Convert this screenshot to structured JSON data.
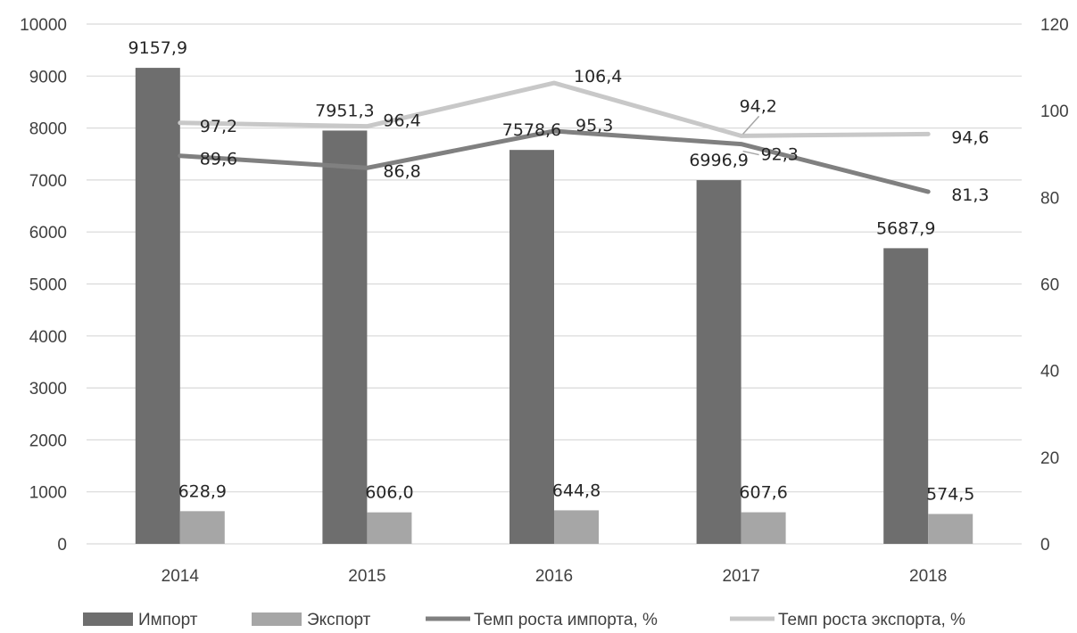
{
  "chart_data": {
    "type": "bar",
    "categories": [
      "2014",
      "2015",
      "2016",
      "2017",
      "2018"
    ],
    "category_labels": [
      "2014",
      "2015",
      "2016",
      "2017",
      "2018"
    ],
    "series": [
      {
        "name": "Импорт",
        "kind": "bar",
        "axis": "left",
        "color": "#6e6e6e",
        "values": [
          9157.9,
          7951.3,
          7578.6,
          6996.9,
          5687.9
        ],
        "labels": [
          "9157,9",
          "7951,3",
          "7578,6",
          "6996,9",
          "5687,9"
        ]
      },
      {
        "name": "Экспорт",
        "kind": "bar",
        "axis": "left",
        "color": "#a6a6a6",
        "values": [
          628.9,
          606.0,
          644.8,
          607.6,
          574.5
        ],
        "labels": [
          "628,9",
          "606,0",
          "644,8",
          "607,6",
          "574,5"
        ]
      },
      {
        "name": "Темп роста импорта, %",
        "kind": "line",
        "axis": "right",
        "color": "#808080",
        "values": [
          89.6,
          86.8,
          95.3,
          92.3,
          81.3
        ],
        "labels": [
          "89,6",
          "86,8",
          "95,3",
          "92,3",
          "81,3"
        ]
      },
      {
        "name": "Темп роста экспорта, %",
        "kind": "line",
        "axis": "right",
        "color": "#c8c8c8",
        "values": [
          97.2,
          96.4,
          106.4,
          94.2,
          94.6
        ],
        "labels": [
          "97,2",
          "96,4",
          "106,4",
          "94,2",
          "94,6"
        ]
      }
    ],
    "y_left": {
      "range": [
        0,
        10000
      ],
      "ticks": [
        0,
        1000,
        2000,
        3000,
        4000,
        5000,
        6000,
        7000,
        8000,
        9000,
        10000
      ],
      "tick_labels": [
        "0",
        "1000",
        "2000",
        "3000",
        "4000",
        "5000",
        "6000",
        "7000",
        "8000",
        "9000",
        "10000"
      ]
    },
    "y_right": {
      "range": [
        0,
        120
      ],
      "ticks": [
        0,
        20,
        40,
        60,
        80,
        100,
        120
      ],
      "tick_labels": [
        "0",
        "20",
        "40",
        "60",
        "80",
        "100",
        "120"
      ]
    },
    "title": "",
    "xlabel": "",
    "grid": true,
    "legend_position": "bottom"
  }
}
